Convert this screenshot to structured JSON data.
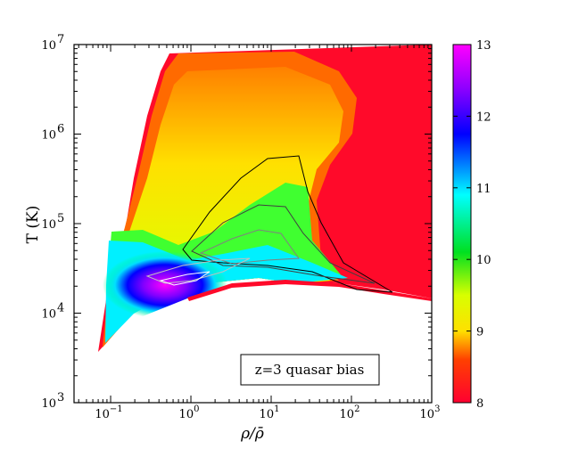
{
  "chart_data": {
    "type": "heatmap",
    "title": "",
    "xlabel": "ρ/ρ̄",
    "ylabel": "T (K)",
    "x_scale": "log",
    "y_scale": "log",
    "xlim": [
      0.035,
      1000
    ],
    "ylim": [
      1000,
      10000000
    ],
    "x_ticks": [
      0.1,
      1,
      10,
      100,
      1000
    ],
    "x_tick_labels": [
      "10",
      "10",
      "10",
      "10",
      "10"
    ],
    "x_tick_exponents": [
      "−1",
      "0",
      "1",
      "2",
      "3"
    ],
    "y_ticks": [
      1000,
      10000,
      100000,
      1000000,
      10000000
    ],
    "y_tick_labels": [
      "10",
      "10",
      "10",
      "10",
      "10"
    ],
    "y_tick_exponents": [
      "3",
      "4",
      "5",
      "6",
      "7"
    ],
    "colorbar": {
      "range": [
        8,
        13
      ],
      "ticks": [
        8,
        9,
        10,
        11,
        12,
        13
      ],
      "tick_labels": [
        "8",
        "9",
        "10",
        "11",
        "12",
        "13"
      ],
      "colormap": [
        "#ff0030",
        "#ff5000",
        "#ffff00",
        "#00ff00",
        "#00ffff",
        "#0000ff",
        "#ff00ff"
      ]
    },
    "annotation": "z=3 quasar bias",
    "contour_colors": [
      "#000000",
      "#404040",
      "#808080",
      "#c0c0c0",
      "#ffffff"
    ],
    "grid": false,
    "legend": "none"
  }
}
